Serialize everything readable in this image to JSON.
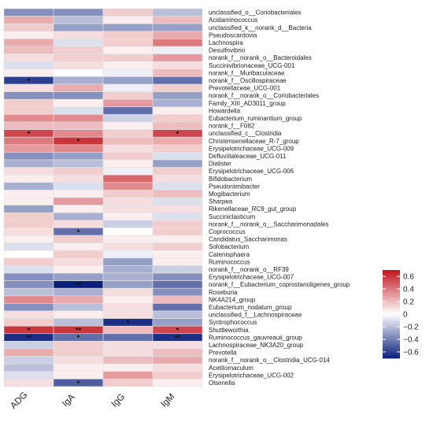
{
  "chart_data": {
    "type": "heatmap",
    "columns": [
      "ADG",
      "IgA",
      "IgG",
      "IgM"
    ],
    "rows": [
      "unclassified_o__Coriobacteriales",
      "Acidaminococcus",
      "unclassified_k__norank_d__Bacteria",
      "Pseudoscardovia",
      "Lachnospira",
      "Desulfovibrio",
      "norank_f__norank_o__Bacteroidales",
      "Succinivibrionaceae_UCG-001",
      "norank_f__Muribaculaceae",
      "norank_f__Oscillospiraceae",
      "Prevotellaceae_UCG-001",
      "norank_f__norank_o__Coriobacteriales",
      "Family_XIII_AD3011_group",
      "Howardella",
      "Eubacterium_ruminantium_group",
      "norank_f__F082",
      "unclassified_c__Clostridia",
      "Christensenellaceae_R-7_group",
      "Erysipelotrichaceae_UCG-009",
      "Defluviitaleaceae_UCG-011",
      "Dialister",
      "Erysipelotrichaceae_UCG-006",
      "Bifidobacterium",
      "Pseudoramibacter",
      "Mogibacterium",
      "Sharpea",
      "Rikenellaceae_RC9_gut_group",
      "Succiniclasticum",
      "norank_f__norank_o__Saccharimonadales",
      "Coprococcus",
      "Candidatus_Saccharimonas",
      "Solobacterium",
      "Catenisphaera",
      "Ruminococcus",
      "norank_f__norank_o__RF39",
      "Erysipelotrichaceae_UCG-007",
      "norank_f__Eubacterium_coprostanoligenes_group",
      "Roseburia",
      "NK4A214_group",
      "Eubacterium_nodatum_group",
      "unclassified_f__Lachnospiraceae",
      "Syntrophococcus",
      "Shuttleworthia",
      "Ruminococcus_gauvreauii_group",
      "Lachnospiraceae_NK3A20_group",
      "Prevotella",
      "norank_f__norank_o__Clostridia_UCG-014",
      "Acetitomaculum",
      "Erysipelotrichaceae_UCG-002",
      "Olsenella"
    ],
    "values": [
      [
        -0.35,
        -0.35,
        0.15,
        -0.2
      ],
      [
        0.25,
        -0.2,
        0.05,
        0.2
      ],
      [
        0.15,
        -0.3,
        -0.3,
        -0.3
      ],
      [
        0.05,
        0.1,
        0.15,
        0.25
      ],
      [
        0.25,
        -0.1,
        0.15,
        0.4
      ],
      [
        0.2,
        0.15,
        0.05,
        -0.05
      ],
      [
        0.1,
        0.15,
        0.15,
        0.3
      ],
      [
        -0.1,
        0.1,
        0.05,
        0.1
      ],
      [
        0.05,
        0.0,
        -0.05,
        0.2
      ],
      [
        -0.6,
        -0.25,
        -0.3,
        -0.45
      ],
      [
        0.1,
        0.25,
        -0.05,
        0.15
      ],
      [
        -0.35,
        -0.35,
        0.15,
        -0.3
      ],
      [
        0.15,
        0.05,
        0.3,
        -0.25
      ],
      [
        0.15,
        -0.1,
        -0.45,
        0.05
      ],
      [
        0.35,
        0.35,
        -0.15,
        0.15
      ],
      [
        0.2,
        0.2,
        0.05,
        0.2
      ],
      [
        0.55,
        0.35,
        0.15,
        0.55
      ],
      [
        0.4,
        0.6,
        0.2,
        0.25
      ],
      [
        0.3,
        0.35,
        0.1,
        0.15
      ],
      [
        -0.35,
        -0.3,
        0.15,
        -0.1
      ],
      [
        -0.25,
        -0.2,
        0.05,
        -0.3
      ],
      [
        0.1,
        0.15,
        -0.05,
        0.15
      ],
      [
        0.05,
        0.1,
        0.45,
        0.1
      ],
      [
        -0.25,
        -0.1,
        0.35,
        -0.1
      ],
      [
        0.05,
        0.05,
        0.15,
        0.2
      ],
      [
        0.05,
        0.3,
        0.1,
        -0.1
      ],
      [
        -0.3,
        0.05,
        0.1,
        0.1
      ],
      [
        0.15,
        -0.25,
        0.05,
        -0.1
      ],
      [
        0.15,
        0.1,
        -0.15,
        0.15
      ],
      [
        0.1,
        -0.45,
        0.0,
        0.15
      ],
      [
        0.05,
        0.15,
        0.05,
        0.05
      ],
      [
        -0.1,
        0.05,
        0.1,
        0.15
      ],
      [
        0.0,
        0.15,
        -0.05,
        0.05
      ],
      [
        0.15,
        0.1,
        -0.3,
        0.05
      ],
      [
        -0.1,
        0.05,
        -0.25,
        -0.15
      ],
      [
        -0.35,
        -0.3,
        -0.25,
        -0.35
      ],
      [
        -0.35,
        -0.7,
        -0.3,
        -0.45
      ],
      [
        -0.2,
        -0.25,
        0.1,
        -0.35
      ],
      [
        0.35,
        0.25,
        0.05,
        0.2
      ],
      [
        -0.35,
        -0.2,
        0.1,
        -0.45
      ],
      [
        0.1,
        0.05,
        0.1,
        -0.2
      ],
      [
        0.15,
        -0.2,
        -0.65,
        -0.3
      ],
      [
        0.6,
        0.6,
        0.2,
        0.55
      ],
      [
        -0.65,
        -0.45,
        -0.45,
        -0.65
      ],
      [
        -0.15,
        0.15,
        0.1,
        0.1
      ],
      [
        0.25,
        0.15,
        0.1,
        0.2
      ],
      [
        -0.15,
        0.1,
        0.2,
        0.25
      ],
      [
        -0.2,
        0.05,
        0.05,
        0.1
      ],
      [
        -0.1,
        0.05,
        0.3,
        0.15
      ],
      [
        0.1,
        -0.5,
        0.15,
        0.05
      ]
    ],
    "significance": [
      [
        "",
        "",
        "",
        ""
      ],
      [
        "",
        "",
        "",
        ""
      ],
      [
        "",
        "",
        "",
        ""
      ],
      [
        "",
        "",
        "",
        ""
      ],
      [
        "",
        "",
        "",
        ""
      ],
      [
        "",
        "",
        "",
        ""
      ],
      [
        "",
        "",
        "",
        ""
      ],
      [
        "",
        "",
        "",
        ""
      ],
      [
        "",
        "",
        "",
        ""
      ],
      [
        "*",
        "",
        "",
        ""
      ],
      [
        "",
        "",
        "",
        ""
      ],
      [
        "",
        "",
        "",
        ""
      ],
      [
        "",
        "",
        "",
        ""
      ],
      [
        "",
        "",
        "",
        ""
      ],
      [
        "",
        "",
        "",
        ""
      ],
      [
        "",
        "",
        "",
        ""
      ],
      [
        "*",
        "",
        "",
        "*"
      ],
      [
        "",
        "*",
        "",
        ""
      ],
      [
        "",
        "",
        "",
        ""
      ],
      [
        "",
        "",
        "",
        ""
      ],
      [
        "",
        "",
        "",
        ""
      ],
      [
        "",
        "",
        "",
        ""
      ],
      [
        "",
        "",
        "",
        ""
      ],
      [
        "",
        "",
        "",
        ""
      ],
      [
        "",
        "",
        "",
        ""
      ],
      [
        "",
        "",
        "",
        ""
      ],
      [
        "",
        "",
        "",
        ""
      ],
      [
        "",
        "",
        "",
        ""
      ],
      [
        "",
        "",
        "",
        ""
      ],
      [
        "",
        "*",
        "",
        ""
      ],
      [
        "",
        "",
        "",
        ""
      ],
      [
        "",
        "",
        "",
        ""
      ],
      [
        "",
        "",
        "",
        ""
      ],
      [
        "",
        "",
        "",
        ""
      ],
      [
        "",
        "",
        "",
        ""
      ],
      [
        "",
        "",
        "",
        ""
      ],
      [
        "",
        "**",
        "",
        ""
      ],
      [
        "",
        "",
        "",
        ""
      ],
      [
        "",
        "",
        "",
        ""
      ],
      [
        "",
        "",
        "",
        ""
      ],
      [
        "",
        "",
        "",
        ""
      ],
      [
        "",
        "",
        "*",
        ""
      ],
      [
        "*",
        "**",
        "",
        "*"
      ],
      [
        "**",
        "*",
        "",
        "**"
      ],
      [
        "",
        "",
        "",
        ""
      ],
      [
        "",
        "",
        "",
        ""
      ],
      [
        "",
        "",
        "",
        ""
      ],
      [
        "",
        "",
        "",
        ""
      ],
      [
        "",
        "",
        "",
        ""
      ],
      [
        "",
        "*",
        "",
        ""
      ]
    ],
    "color_scale": {
      "range": [
        -0.7,
        0.7
      ],
      "low": "#0b1f7a",
      "mid": "#ffffff",
      "high": "#c0141c",
      "ticks": [
        0.6,
        0.4,
        0.2,
        0,
        -0.2,
        -0.4,
        -0.6
      ],
      "tick_labels": [
        "0.6",
        "0.4",
        "0.2",
        "0",
        "−0.2",
        "−0.4",
        "−0.6"
      ]
    },
    "legend_position": "right"
  }
}
